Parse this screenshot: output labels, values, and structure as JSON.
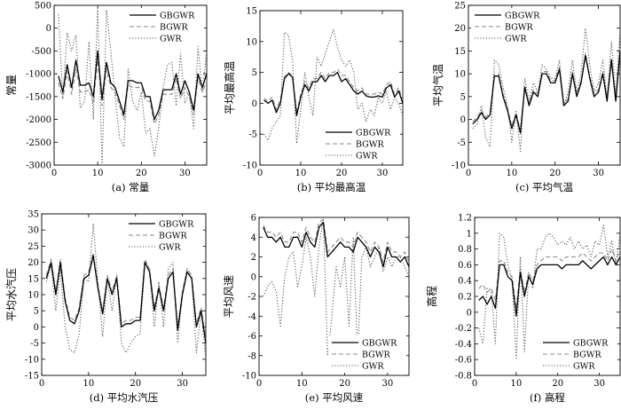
{
  "figure": {
    "layout": "2 rows x 3 columns"
  },
  "legend_labels": [
    "GBGWR",
    "BGWR",
    "GWR"
  ],
  "chart_data": [
    {
      "type": "line",
      "id": "a",
      "caption": "(a) 常量",
      "ylabel": "常量",
      "xlim": [
        0,
        35
      ],
      "ylim": [
        -3000,
        500
      ],
      "xticks": [
        0,
        10,
        20,
        30
      ],
      "yticks": [
        -3000,
        -2500,
        -2000,
        -1500,
        -1000,
        -500,
        0,
        500
      ],
      "legend_loc": "top-right",
      "x": [
        1,
        2,
        3,
        4,
        5,
        6,
        7,
        8,
        9,
        10,
        11,
        12,
        13,
        14,
        15,
        16,
        17,
        18,
        19,
        20,
        21,
        22,
        23,
        24,
        25,
        26,
        27,
        28,
        29,
        30,
        31,
        32,
        33,
        34,
        35
      ],
      "series": [
        {
          "name": "GBGWR",
          "values": [
            -1050,
            -1400,
            -800,
            -1300,
            -700,
            -1250,
            -1250,
            -1200,
            -1500,
            -500,
            -1550,
            -750,
            -1200,
            -1300,
            -1600,
            -1900,
            -1150,
            -1150,
            -1200,
            -1200,
            -1500,
            -1500,
            -2000,
            -1800,
            -1350,
            -1350,
            -1350,
            -1000,
            -1450,
            -1150,
            -1400,
            -1800,
            -1000,
            -1300,
            -1000
          ]
        },
        {
          "name": "BGWR",
          "values": [
            -1200,
            -1550,
            -950,
            -1450,
            -900,
            -1400,
            -1400,
            -1350,
            -1650,
            -700,
            -1700,
            -900,
            -1300,
            -1400,
            -1700,
            -2000,
            -1250,
            -1300,
            -1300,
            -1300,
            -1600,
            -1600,
            -2100,
            -1900,
            -1450,
            -1450,
            -1450,
            -1100,
            -1550,
            -1300,
            -1500,
            -1900,
            -1100,
            -1400,
            -1150
          ]
        },
        {
          "name": "GWR",
          "values": [
            300,
            -1500,
            -100,
            -500,
            -150,
            -1750,
            -1600,
            -300,
            -2000,
            400,
            -3000,
            400,
            -500,
            -1500,
            -2400,
            -2600,
            -900,
            -1600,
            -1800,
            -1400,
            -2300,
            -2200,
            -2800,
            -2200,
            -1300,
            -800,
            -750,
            -1700,
            -550,
            -1650,
            -1400,
            -2200,
            -400,
            -1400,
            -500
          ]
        }
      ]
    },
    {
      "type": "line",
      "id": "b",
      "caption": "(b) 平均最高温",
      "ylabel": "平均最高温",
      "xlim": [
        0,
        35
      ],
      "ylim": [
        -10,
        15
      ],
      "xticks": [
        0,
        10,
        20,
        30
      ],
      "yticks": [
        -10,
        -5,
        0,
        5,
        10,
        15
      ],
      "legend_loc": "bottom-right",
      "x": [
        1,
        2,
        3,
        4,
        5,
        6,
        7,
        8,
        9,
        10,
        11,
        12,
        13,
        14,
        15,
        16,
        17,
        18,
        19,
        20,
        21,
        22,
        23,
        24,
        25,
        26,
        27,
        28,
        29,
        30,
        31,
        32,
        33,
        34,
        35
      ],
      "series": [
        {
          "name": "GBGWR",
          "values": [
            0.5,
            0,
            0.5,
            -1.5,
            0,
            4,
            4.8,
            4.2,
            -2,
            1,
            3,
            2,
            3.5,
            3.5,
            4.5,
            3.5,
            4.5,
            4.5,
            5,
            3.5,
            4,
            3,
            2,
            1.5,
            2,
            1.2,
            1,
            1,
            1.2,
            1,
            2.5,
            3,
            1,
            2,
            0
          ]
        },
        {
          "name": "BGWR",
          "values": [
            0.8,
            0.3,
            1,
            -1,
            0.5,
            4.3,
            5,
            4.5,
            -1.5,
            1.5,
            3.5,
            2.5,
            4,
            4,
            5,
            4,
            5,
            5,
            5.5,
            4.5,
            4.5,
            3.5,
            2.5,
            2,
            2.5,
            1.5,
            1.5,
            1.5,
            1.8,
            1.5,
            3,
            3.5,
            1.5,
            2.5,
            0.5
          ]
        },
        {
          "name": "GWR",
          "values": [
            -5,
            -6,
            -4,
            -3,
            -2,
            11.5,
            11,
            7,
            -6.5,
            -1,
            5,
            1,
            -2,
            7.5,
            6,
            8,
            10,
            12,
            9,
            7,
            6,
            7,
            5,
            -1,
            0,
            -3,
            -1,
            -2,
            1,
            0,
            2,
            -1,
            1,
            0,
            -2
          ]
        }
      ]
    },
    {
      "type": "line",
      "id": "c",
      "caption": "(c) 平均气温",
      "ylabel": "平均气温",
      "xlim": [
        0,
        35
      ],
      "ylim": [
        -10,
        25
      ],
      "xticks": [
        0,
        10,
        20,
        30
      ],
      "yticks": [
        -10,
        -5,
        0,
        5,
        10,
        15,
        20,
        25
      ],
      "legend_loc": "top-left",
      "x": [
        1,
        2,
        3,
        4,
        5,
        6,
        7,
        8,
        9,
        10,
        11,
        12,
        13,
        14,
        15,
        16,
        17,
        18,
        19,
        20,
        21,
        22,
        23,
        24,
        25,
        26,
        27,
        28,
        29,
        30,
        31,
        32,
        33,
        34,
        35
      ],
      "series": [
        {
          "name": "GBGWR",
          "values": [
            -1,
            0,
            1.5,
            0,
            1,
            9.5,
            9.5,
            5,
            2,
            -2,
            1,
            -3,
            7,
            3,
            6,
            5,
            10,
            10,
            8,
            8,
            11,
            3,
            4,
            10,
            5,
            8,
            14,
            9,
            5,
            6,
            10,
            4,
            13,
            4,
            15
          ]
        },
        {
          "name": "BGWR",
          "values": [
            -0.5,
            0.5,
            2,
            0.5,
            1.5,
            10,
            10,
            5.5,
            2.5,
            -1.5,
            1.5,
            -2.5,
            7.5,
            3.5,
            6.5,
            5.5,
            10.5,
            10.5,
            8.5,
            8.5,
            11.5,
            3.5,
            4.5,
            10.5,
            5.5,
            8.5,
            14.5,
            9.5,
            5.5,
            6.5,
            10.5,
            4.5,
            13.5,
            4.5,
            15.5
          ]
        },
        {
          "name": "GWR",
          "values": [
            -2,
            -1,
            3,
            -4,
            -6,
            13,
            12,
            7,
            3,
            -5,
            2,
            -7,
            9,
            4,
            8,
            6,
            12,
            11,
            9,
            9,
            13,
            3,
            6,
            13,
            6,
            10,
            20,
            12,
            6,
            8,
            13,
            5,
            17,
            5,
            20
          ]
        }
      ]
    },
    {
      "type": "line",
      "id": "d",
      "caption": "(d) 平均水汽压",
      "ylabel": "平均水汽压",
      "xlim": [
        0,
        35
      ],
      "ylim": [
        -15,
        35
      ],
      "xticks": [
        0,
        10,
        20,
        30
      ],
      "yticks": [
        -15,
        -10,
        -5,
        0,
        5,
        10,
        15,
        20,
        25,
        30,
        35
      ],
      "legend_loc": "top-right",
      "x": [
        1,
        2,
        3,
        4,
        5,
        6,
        7,
        8,
        9,
        10,
        11,
        12,
        13,
        14,
        15,
        16,
        17,
        18,
        19,
        20,
        21,
        22,
        23,
        24,
        25,
        26,
        27,
        28,
        29,
        30,
        31,
        32,
        33,
        34,
        35
      ],
      "series": [
        {
          "name": "GBGWR",
          "values": [
            15,
            20,
            10,
            20,
            8,
            2,
            1,
            5,
            15,
            16,
            22,
            12,
            4,
            15,
            10,
            15,
            0,
            1,
            1,
            2,
            2,
            20,
            17,
            5,
            12,
            5,
            15,
            17,
            -1,
            10,
            17,
            15,
            0,
            5,
            -5
          ]
        },
        {
          "name": "BGWR",
          "values": [
            16,
            21,
            11,
            21,
            9,
            3,
            2,
            6,
            16,
            17,
            23,
            13,
            5,
            16,
            11,
            16,
            1,
            2,
            2,
            3,
            3,
            21,
            18,
            6,
            13,
            6,
            16,
            18,
            0,
            11,
            18,
            16,
            1,
            6,
            -4
          ]
        },
        {
          "name": "GWR",
          "values": [
            14,
            19,
            5,
            18,
            0,
            -7,
            -8,
            -2,
            15,
            14,
            32,
            14,
            -3,
            15,
            5,
            16,
            -5,
            -8,
            -5,
            -3,
            -2,
            20,
            18,
            0,
            14,
            0,
            18,
            20,
            -5,
            10,
            18,
            15,
            -8,
            5,
            -10
          ]
        }
      ]
    },
    {
      "type": "line",
      "id": "e",
      "caption": "(e) 平均风速",
      "ylabel": "平均风速",
      "xlim": [
        0,
        35
      ],
      "ylim": [
        -10,
        6
      ],
      "xticks": [
        0,
        10,
        20,
        30
      ],
      "yticks": [
        -10,
        -8,
        -6,
        -4,
        -2,
        0,
        2,
        4,
        6
      ],
      "legend_loc": "bottom-right",
      "x": [
        1,
        2,
        3,
        4,
        5,
        6,
        7,
        8,
        9,
        10,
        11,
        12,
        13,
        14,
        15,
        16,
        17,
        18,
        19,
        20,
        21,
        22,
        23,
        24,
        25,
        26,
        27,
        28,
        29,
        30,
        31,
        32,
        33,
        34,
        35
      ],
      "series": [
        {
          "name": "GBGWR",
          "values": [
            5,
            4,
            4,
            3.5,
            4,
            3,
            3,
            4,
            4,
            3,
            4.5,
            3.5,
            3,
            5,
            5.5,
            2,
            2.5,
            3,
            3.5,
            3,
            3,
            2.5,
            4,
            3.5,
            3,
            2,
            3,
            2.5,
            1,
            3,
            2,
            2,
            1.5,
            2,
            1
          ]
        },
        {
          "name": "BGWR",
          "values": [
            5.2,
            4.5,
            4.5,
            4,
            4.5,
            3.5,
            3.5,
            4.5,
            4.5,
            3.5,
            5,
            4,
            3.5,
            5.5,
            5.8,
            2.5,
            3,
            3.5,
            4,
            3.5,
            3.5,
            3,
            4.5,
            4,
            3.5,
            2.5,
            3.5,
            3,
            1.5,
            3.5,
            2.5,
            2.5,
            2,
            2.5,
            1.5
          ]
        },
        {
          "name": "GWR",
          "values": [
            -2,
            -1,
            -0.5,
            -1.5,
            -5,
            0,
            2,
            2.5,
            -1,
            1,
            4,
            2,
            -2,
            3,
            6,
            -8,
            -4,
            1,
            -1,
            2,
            -5,
            4,
            -8,
            2,
            3,
            1,
            2,
            3,
            0.5,
            2,
            1,
            2,
            2,
            1,
            0
          ]
        }
      ]
    },
    {
      "type": "line",
      "id": "f",
      "caption": "(f) 高程",
      "ylabel": "高程",
      "xlim": [
        0,
        35
      ],
      "ylim": [
        -0.8,
        1.2
      ],
      "xticks": [
        0,
        10,
        20,
        30
      ],
      "yticks": [
        -0.8,
        -0.6,
        -0.4,
        -0.2,
        0,
        0.2,
        0.4,
        0.6,
        0.8,
        1.0,
        1.2
      ],
      "legend_loc": "bottom-right",
      "x": [
        1,
        2,
        3,
        4,
        5,
        6,
        7,
        8,
        9,
        10,
        11,
        12,
        13,
        14,
        15,
        16,
        17,
        18,
        19,
        20,
        21,
        22,
        23,
        24,
        25,
        26,
        27,
        28,
        29,
        30,
        31,
        32,
        33,
        34,
        35
      ],
      "series": [
        {
          "name": "GBGWR",
          "values": [
            0.15,
            0.2,
            0.1,
            0.2,
            0.05,
            0.6,
            0.6,
            0.45,
            0.4,
            -0.05,
            0.5,
            0.2,
            0.45,
            0.35,
            0.55,
            0.6,
            0.6,
            0.6,
            0.6,
            0.6,
            0.55,
            0.6,
            0.6,
            0.6,
            0.6,
            0.65,
            0.6,
            0.55,
            0.6,
            0.65,
            0.7,
            0.6,
            0.7,
            0.6,
            0.7
          ]
        },
        {
          "name": "BGWR",
          "values": [
            0.3,
            0.35,
            0.25,
            0.3,
            0.15,
            0.65,
            0.65,
            0.5,
            0.45,
            0.05,
            0.55,
            0.25,
            0.5,
            0.4,
            0.6,
            0.65,
            0.7,
            0.7,
            0.7,
            0.7,
            0.65,
            0.7,
            0.7,
            0.7,
            0.7,
            0.75,
            0.7,
            0.65,
            0.7,
            0.75,
            0.75,
            0.65,
            0.8,
            0.65,
            0.8
          ]
        },
        {
          "name": "GWR",
          "values": [
            -0.2,
            -0.4,
            0.3,
            0.3,
            -0.4,
            1.0,
            0.95,
            0.6,
            0.4,
            -0.6,
            0.7,
            -0.5,
            0.5,
            0.3,
            0.8,
            0.8,
            0.95,
            1.0,
            0.95,
            0.85,
            0.9,
            0.85,
            0.95,
            0.8,
            0.9,
            0.8,
            0.85,
            0.7,
            0.9,
            0.85,
            1.1,
            0.7,
            0.9,
            0.6,
            1.0
          ]
        }
      ]
    }
  ]
}
